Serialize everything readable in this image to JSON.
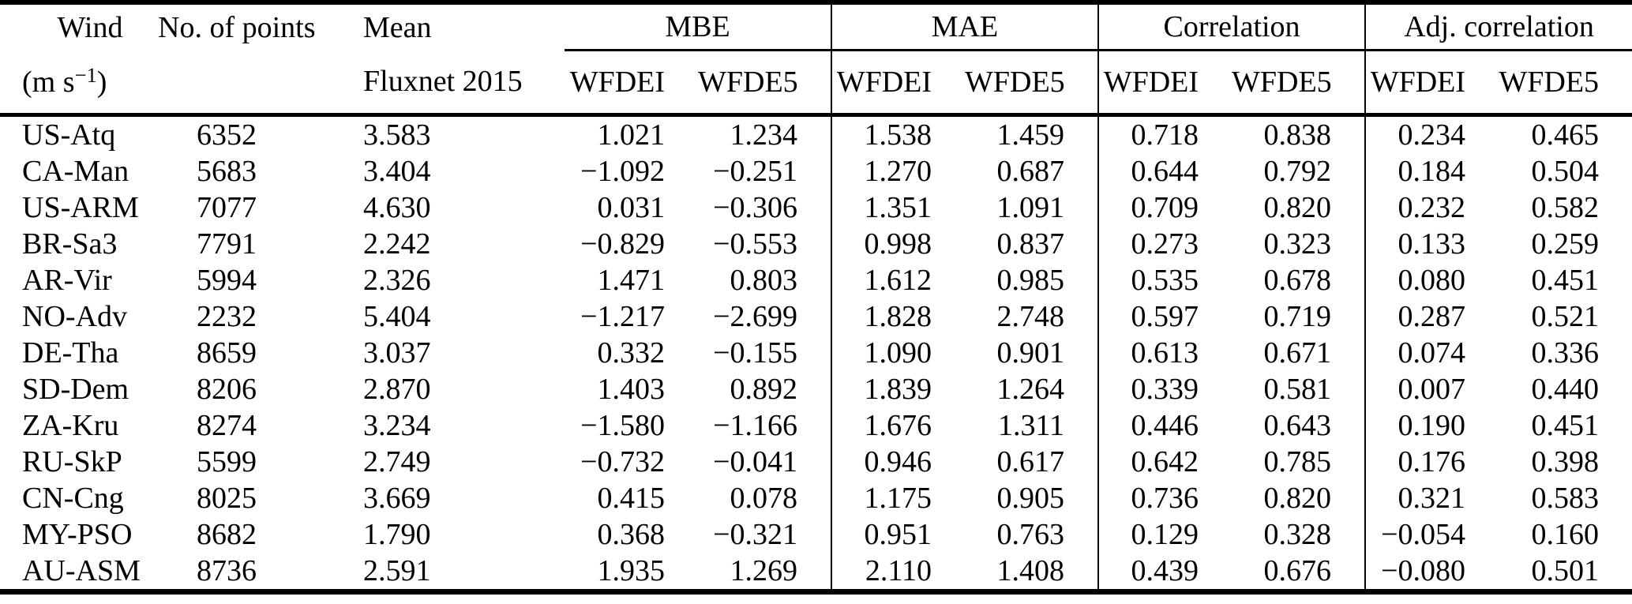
{
  "colors": {
    "text": "#000000",
    "background": "#ffffff",
    "rules": "#000000"
  },
  "table": {
    "top_header": {
      "wind": "Wind",
      "points": "No. of points",
      "mean": "Mean",
      "groups": [
        {
          "label": "MBE"
        },
        {
          "label": "MAE"
        },
        {
          "label": "Correlation"
        },
        {
          "label": "Adj. correlation"
        }
      ]
    },
    "sub_header": {
      "unit_pre": "(m s",
      "unit_sup": "−1",
      "unit_post": ")",
      "mean": "Fluxnet 2015",
      "dataset_cols": [
        "WFDEI",
        "WFDE5"
      ]
    },
    "rows": [
      {
        "site": "US-Atq",
        "points": "6352",
        "mean": "3.583",
        "values": [
          "1.021",
          "1.234",
          "1.538",
          "1.459",
          "0.718",
          "0.838",
          "0.234",
          "0.465"
        ]
      },
      {
        "site": "CA-Man",
        "points": "5683",
        "mean": "3.404",
        "values": [
          "−1.092",
          "−0.251",
          "1.270",
          "0.687",
          "0.644",
          "0.792",
          "0.184",
          "0.504"
        ]
      },
      {
        "site": "US-ARM",
        "points": "7077",
        "mean": "4.630",
        "values": [
          "0.031",
          "−0.306",
          "1.351",
          "1.091",
          "0.709",
          "0.820",
          "0.232",
          "0.582"
        ]
      },
      {
        "site": "BR-Sa3",
        "points": "7791",
        "mean": "2.242",
        "values": [
          "−0.829",
          "−0.553",
          "0.998",
          "0.837",
          "0.273",
          "0.323",
          "0.133",
          "0.259"
        ]
      },
      {
        "site": "AR-Vir",
        "points": "5994",
        "mean": "2.326",
        "values": [
          "1.471",
          "0.803",
          "1.612",
          "0.985",
          "0.535",
          "0.678",
          "0.080",
          "0.451"
        ]
      },
      {
        "site": "NO-Adv",
        "points": "2232",
        "mean": "5.404",
        "values": [
          "−1.217",
          "−2.699",
          "1.828",
          "2.748",
          "0.597",
          "0.719",
          "0.287",
          "0.521"
        ]
      },
      {
        "site": "DE-Tha",
        "points": "8659",
        "mean": "3.037",
        "values": [
          "0.332",
          "−0.155",
          "1.090",
          "0.901",
          "0.613",
          "0.671",
          "0.074",
          "0.336"
        ]
      },
      {
        "site": "SD-Dem",
        "points": "8206",
        "mean": "2.870",
        "values": [
          "1.403",
          "0.892",
          "1.839",
          "1.264",
          "0.339",
          "0.581",
          "0.007",
          "0.440"
        ]
      },
      {
        "site": "ZA-Kru",
        "points": "8274",
        "mean": "3.234",
        "values": [
          "−1.580",
          "−1.166",
          "1.676",
          "1.311",
          "0.446",
          "0.643",
          "0.190",
          "0.451"
        ]
      },
      {
        "site": "RU-SkP",
        "points": "5599",
        "mean": "2.749",
        "values": [
          "−0.732",
          "−0.041",
          "0.946",
          "0.617",
          "0.642",
          "0.785",
          "0.176",
          "0.398"
        ]
      },
      {
        "site": "CN-Cng",
        "points": "8025",
        "mean": "3.669",
        "values": [
          "0.415",
          "0.078",
          "1.175",
          "0.905",
          "0.736",
          "0.820",
          "0.321",
          "0.583"
        ]
      },
      {
        "site": "MY-PSO",
        "points": "8682",
        "mean": "1.790",
        "values": [
          "0.368",
          "−0.321",
          "0.951",
          "0.763",
          "0.129",
          "0.328",
          "−0.054",
          "0.160"
        ]
      },
      {
        "site": "AU-ASM",
        "points": "8736",
        "mean": "2.591",
        "values": [
          "1.935",
          "1.269",
          "2.110",
          "1.408",
          "0.439",
          "0.676",
          "−0.080",
          "0.501"
        ]
      }
    ]
  }
}
